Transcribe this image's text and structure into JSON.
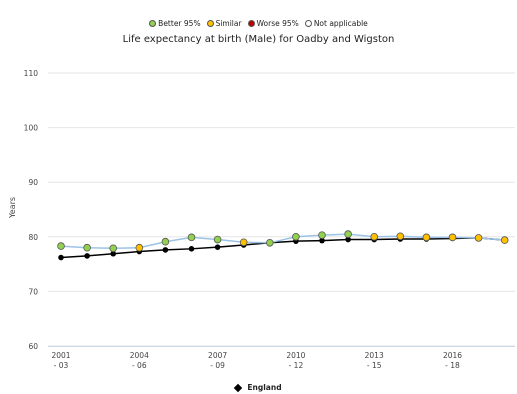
{
  "legend_top": [
    {
      "label": "Better 95%",
      "color": "#92d050"
    },
    {
      "label": "Similar",
      "color": "#ffc000"
    },
    {
      "label": "Worse 95%",
      "color": "#c00000"
    },
    {
      "label": "Not applicable",
      "color": "#ffffff"
    }
  ],
  "chart_data": {
    "type": "line",
    "title": "Life expectancy at birth (Male) for Oadby and Wigston",
    "xlabel": "",
    "ylabel": "Years",
    "ylim": [
      60,
      110
    ],
    "yticks": [
      60,
      70,
      80,
      90,
      100,
      110
    ],
    "categories": [
      "2001 - 03",
      "2002 - 04",
      "2003 - 05",
      "2004 - 06",
      "2005 - 07",
      "2006 - 08",
      "2007 - 09",
      "2008 - 10",
      "2009 - 11",
      "2010 - 12",
      "2011 - 13",
      "2012 - 14",
      "2013 - 15",
      "2014 - 16",
      "2015 - 17",
      "2016 - 18",
      "2017 - 19",
      "2018 - 20"
    ],
    "tick_labels": [
      {
        "index": 0,
        "top": "2001",
        "bottom": "- 03"
      },
      {
        "index": 3,
        "top": "2004",
        "bottom": "- 06"
      },
      {
        "index": 6,
        "top": "2007",
        "bottom": "- 09"
      },
      {
        "index": 9,
        "top": "2010",
        "bottom": "- 12"
      },
      {
        "index": 12,
        "top": "2013",
        "bottom": "- 15"
      },
      {
        "index": 15,
        "top": "2016",
        "bottom": "- 18"
      }
    ],
    "series": [
      {
        "line_color": "#9cc3e6",
        "values": [
          78.3,
          78.0,
          77.9,
          78.0,
          79.1,
          79.9,
          79.5,
          79.0,
          78.9,
          80.0,
          80.3,
          80.5,
          80.0,
          80.1,
          79.9,
          79.9,
          79.8,
          79.4
        ],
        "marker_colors": [
          "#92d050",
          "#92d050",
          "#92d050",
          "#ffc000",
          "#92d050",
          "#92d050",
          "#92d050",
          "#ffc000",
          "#92d050",
          "#92d050",
          "#92d050",
          "#92d050",
          "#ffc000",
          "#ffc000",
          "#ffc000",
          "#ffc000",
          "#ffc000",
          "#ffc000"
        ]
      },
      {
        "name": "England",
        "line_color": "#000000",
        "values": [
          76.2,
          76.5,
          76.9,
          77.3,
          77.6,
          77.8,
          78.1,
          78.5,
          78.9,
          79.2,
          79.3,
          79.5,
          79.5,
          79.6,
          79.6,
          79.7,
          79.8,
          79.4
        ]
      }
    ],
    "grid": true,
    "legend_position": "bottom"
  }
}
